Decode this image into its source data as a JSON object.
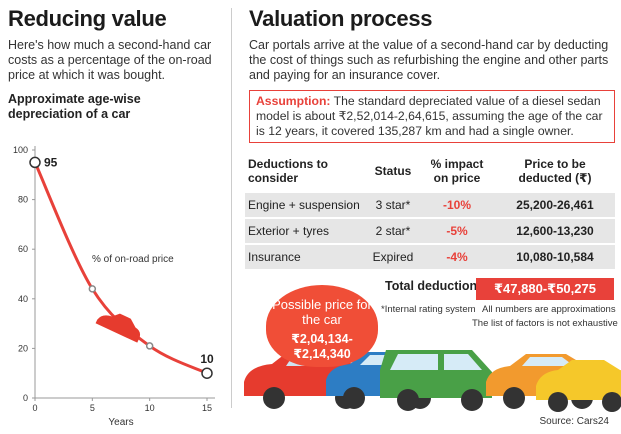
{
  "left": {
    "title": "Reducing value",
    "description": "Here's how much a second-hand car costs as a percentage of the on-road price at which it was bought."
  },
  "chart_data": {
    "type": "line",
    "title": "Approximate age-wise depreciation of a car",
    "annotation": "% of on-road price",
    "x_label": "Years",
    "x": [
      0,
      5,
      10,
      15
    ],
    "values": [
      95,
      44,
      21,
      10
    ],
    "color": "#e8413a",
    "xlim": [
      0,
      15
    ],
    "xticks": [
      0,
      5,
      10,
      15
    ],
    "ylim": [
      0,
      100
    ],
    "yticks": [
      0,
      20,
      40,
      60,
      80,
      100
    ]
  },
  "right": {
    "title": "Valuation process",
    "description": "Car portals arrive at the value of a second-hand car by deducting the cost of things such as refurbishing the engine and other parts and paying for an insurance cover.",
    "assumption": {
      "label": "Assumption:",
      "text": "The standard depreciated value of a diesel sedan model is about ₹2,52,014-2,64,615, assuming the age of the car is 12 years, it covered 135,287 km and had a single owner."
    },
    "table": {
      "header": [
        "Deductions to consider",
        "Status",
        "% impact on price",
        "Price to be deducted (₹)"
      ],
      "rows": [
        [
          "Engine + suspension",
          "3 star*",
          "-10%",
          "25,200-26,461"
        ],
        [
          "Exterior + tyres",
          "2 star*",
          "-5%",
          "12,600-13,230"
        ],
        [
          "Insurance",
          "Expired",
          "-4%",
          "10,080-10,584"
        ]
      ]
    },
    "total": {
      "label": "Total deductions",
      "value": "₹47,880-₹50,275"
    },
    "notes": [
      "*Internal rating system",
      "All numbers are approximations",
      "The list of factors is not exhaustive"
    ],
    "possible_price": {
      "label": "Possible price for the car",
      "value": "₹2,04,134-₹2,14,340"
    },
    "source": "Source: Cars24"
  }
}
